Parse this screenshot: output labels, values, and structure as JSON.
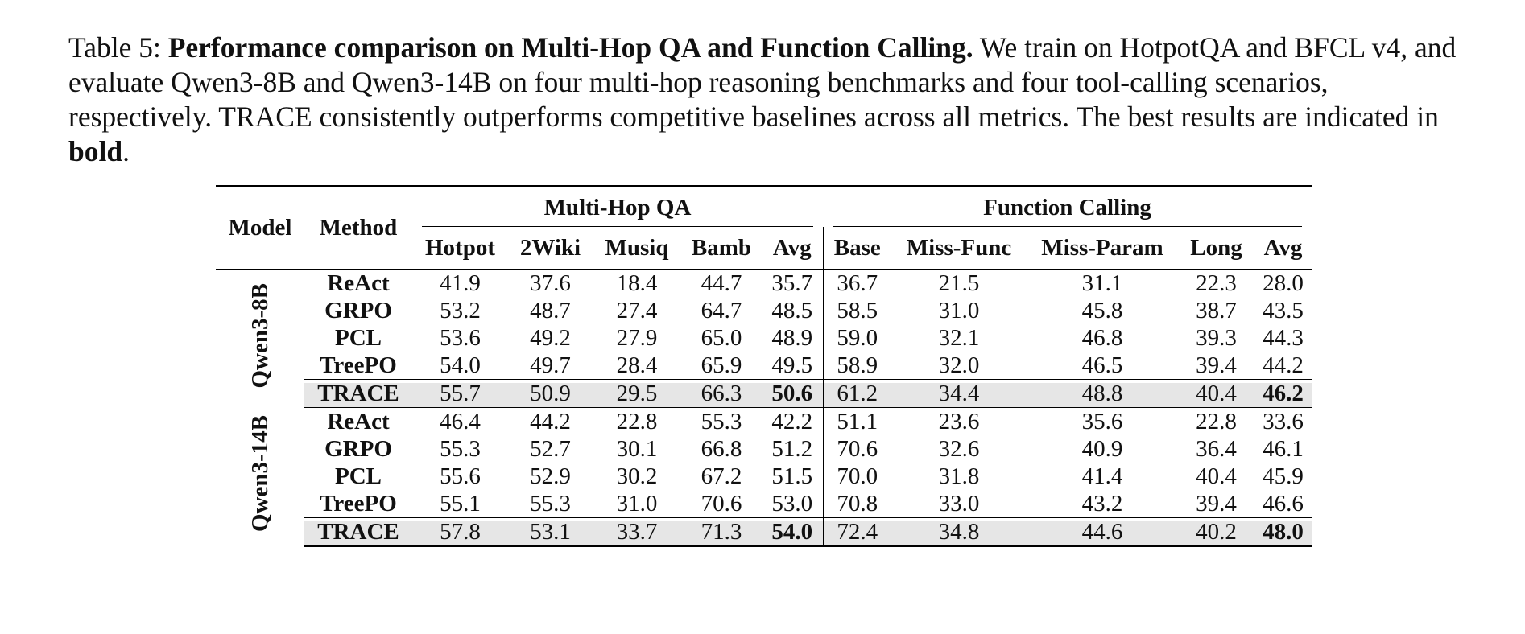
{
  "caption": {
    "label": "Table 5:",
    "title": "Performance comparison on Multi-Hop QA and Function Calling.",
    "text": "We train on HotpotQA and BFCL v4, and evaluate Qwen3-8B and Qwen3-14B on four multi-hop reasoning benchmarks and four tool-calling scenarios, respectively. TRACE consistently outperforms competitive baselines across all metrics. The best results are indicated in",
    "emphasis": "bold",
    "end": "."
  },
  "table": {
    "columns": [
      "Model",
      "Method"
    ],
    "groups": [
      {
        "name": "Multi-Hop QA",
        "columns": [
          "Hotpot",
          "2Wiki",
          "Musiq",
          "Bamb",
          "Avg"
        ]
      },
      {
        "name": "Function Calling",
        "columns": [
          "Base",
          "Miss-Func",
          "Miss-Param",
          "Long",
          "Avg"
        ]
      }
    ],
    "models": [
      {
        "name": "Qwen3-8B",
        "rows": [
          {
            "method": "ReAct",
            "values": [
              "41.9",
              "37.6",
              "18.4",
              "44.7",
              "35.7",
              "36.7",
              "21.5",
              "31.1",
              "22.3",
              "28.0"
            ]
          },
          {
            "method": "GRPO",
            "values": [
              "53.2",
              "48.7",
              "27.4",
              "64.7",
              "48.5",
              "58.5",
              "31.0",
              "45.8",
              "38.7",
              "43.5"
            ]
          },
          {
            "method": "PCL",
            "values": [
              "53.6",
              "49.2",
              "27.9",
              "65.0",
              "48.9",
              "59.0",
              "32.1",
              "46.8",
              "39.3",
              "44.3"
            ]
          },
          {
            "method": "TreePO",
            "values": [
              "54.0",
              "49.7",
              "28.4",
              "65.9",
              "49.5",
              "58.9",
              "32.0",
              "46.5",
              "39.4",
              "44.2"
            ]
          },
          {
            "method": "TRACE",
            "values": [
              "55.7",
              "50.9",
              "29.5",
              "66.3",
              "50.6",
              "61.2",
              "34.4",
              "48.8",
              "40.4",
              "46.2"
            ],
            "highlight": true,
            "bold": [
              4,
              9
            ]
          }
        ]
      },
      {
        "name": "Qwen3-14B",
        "rows": [
          {
            "method": "ReAct",
            "values": [
              "46.4",
              "44.2",
              "22.8",
              "55.3",
              "42.2",
              "51.1",
              "23.6",
              "35.6",
              "22.8",
              "33.6"
            ]
          },
          {
            "method": "GRPO",
            "values": [
              "55.3",
              "52.7",
              "30.1",
              "66.8",
              "51.2",
              "70.6",
              "32.6",
              "40.9",
              "36.4",
              "46.1"
            ]
          },
          {
            "method": "PCL",
            "values": [
              "55.6",
              "52.9",
              "30.2",
              "67.2",
              "51.5",
              "70.0",
              "31.8",
              "41.4",
              "40.4",
              "45.9"
            ]
          },
          {
            "method": "TreePO",
            "values": [
              "55.1",
              "55.3",
              "31.0",
              "70.6",
              "53.0",
              "70.8",
              "33.0",
              "43.2",
              "39.4",
              "46.6"
            ]
          },
          {
            "method": "TRACE",
            "values": [
              "57.8",
              "53.1",
              "33.7",
              "71.3",
              "54.0",
              "72.4",
              "34.8",
              "44.6",
              "40.2",
              "48.0"
            ],
            "highlight": true,
            "bold": [
              4,
              9
            ]
          }
        ]
      }
    ]
  }
}
